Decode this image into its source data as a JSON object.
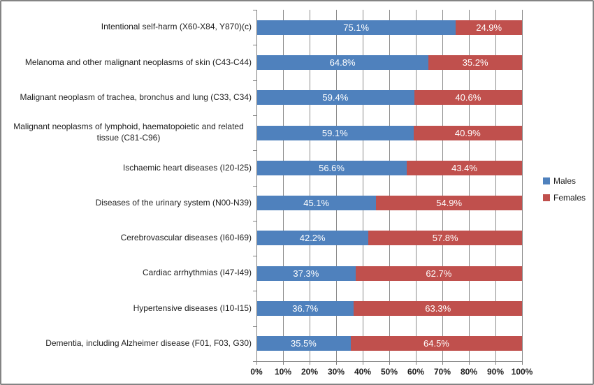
{
  "chart_data": {
    "type": "bar",
    "orientation": "horizontal",
    "stacked": true,
    "title": "",
    "categories": [
      "Intentional self-harm (X60-X84, Y870)(c)",
      "Melanoma and other malignant neoplasms of skin (C43-C44)",
      "Malignant neoplasm of trachea, bronchus and lung (C33, C34)",
      "Malignant neoplasms of lymphoid, haematopoietic and related tissue (C81-C96)",
      "Ischaemic heart diseases (I20-I25)",
      "Diseases of the urinary system (N00-N39)",
      "Cerebrovascular diseases (I60-I69)",
      "Cardiac arrhythmias (I47-I49)",
      "Hypertensive diseases (I10-I15)",
      "Dementia, including Alzheimer disease (F01, F03, G30)"
    ],
    "series": [
      {
        "name": "Males",
        "color": "#4F81BD",
        "values": [
          75.1,
          64.8,
          59.4,
          59.1,
          56.6,
          45.1,
          42.2,
          37.3,
          36.7,
          35.5
        ]
      },
      {
        "name": "Females",
        "color": "#C0504D",
        "values": [
          24.9,
          35.2,
          40.6,
          40.9,
          43.4,
          54.9,
          57.8,
          62.7,
          63.3,
          64.5
        ]
      }
    ],
    "data_label_suffix": "%",
    "x_axis": {
      "min": 0,
      "max": 100,
      "tick_interval": 10,
      "tick_labels": [
        "0%",
        "10%",
        "20%",
        "30%",
        "40%",
        "50%",
        "60%",
        "70%",
        "80%",
        "90%",
        "100%"
      ]
    },
    "legend_position": "right",
    "grid": "vertical-major",
    "colors": {
      "gridline": "#8a8a8a",
      "axis": "#7f7f7f",
      "text": "#1f1f1f",
      "data_label": "#ffffff",
      "background": "#ffffff",
      "border": "#848484"
    }
  }
}
